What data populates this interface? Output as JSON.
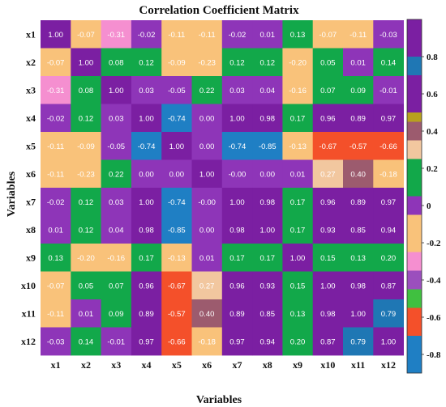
{
  "chart_data": {
    "type": "heatmap",
    "title": "Correlation Coefficient Matrix",
    "xlabel": "Variables",
    "ylabel": "Variables",
    "labels": [
      "x1",
      "x2",
      "x3",
      "x4",
      "x5",
      "x6",
      "x7",
      "x8",
      "x9",
      "x10",
      "x11",
      "x12"
    ],
    "values": [
      [
        1.0,
        -0.07,
        -0.31,
        -0.02,
        -0.11,
        -0.11,
        -0.02,
        0.01,
        0.13,
        -0.07,
        -0.11,
        -0.03
      ],
      [
        -0.07,
        1.0,
        0.08,
        0.12,
        -0.09,
        -0.23,
        0.12,
        0.12,
        -0.2,
        0.05,
        0.01,
        0.14
      ],
      [
        -0.31,
        0.08,
        1.0,
        0.03,
        -0.05,
        0.22,
        0.03,
        0.04,
        -0.16,
        0.07,
        0.09,
        -0.01
      ],
      [
        -0.02,
        0.12,
        0.03,
        1.0,
        -0.74,
        0.0,
        1.0,
        0.98,
        0.17,
        0.96,
        0.89,
        0.97
      ],
      [
        -0.11,
        -0.09,
        -0.05,
        -0.74,
        1.0,
        0.0,
        -0.74,
        -0.85,
        -0.13,
        -0.67,
        -0.57,
        -0.66
      ],
      [
        -0.11,
        -0.23,
        0.22,
        0.0,
        0.0,
        1.0,
        -0.0,
        0.0,
        0.01,
        0.27,
        0.4,
        -0.18
      ],
      [
        -0.02,
        0.12,
        0.03,
        1.0,
        -0.74,
        -0.0,
        1.0,
        0.98,
        0.17,
        0.96,
        0.89,
        0.97
      ],
      [
        0.01,
        0.12,
        0.04,
        0.98,
        -0.85,
        0.0,
        0.98,
        1.0,
        0.17,
        0.93,
        0.85,
        0.94
      ],
      [
        0.13,
        -0.2,
        -0.16,
        0.17,
        -0.13,
        0.01,
        0.17,
        0.17,
        1.0,
        0.15,
        0.13,
        0.2
      ],
      [
        -0.07,
        0.05,
        0.07,
        0.96,
        -0.67,
        0.27,
        0.96,
        0.93,
        0.15,
        1.0,
        0.98,
        0.87
      ],
      [
        -0.11,
        0.01,
        0.09,
        0.89,
        -0.57,
        0.4,
        0.89,
        0.85,
        0.13,
        0.98,
        1.0,
        0.79
      ],
      [
        -0.03,
        0.14,
        -0.01,
        0.97,
        -0.66,
        -0.18,
        0.97,
        0.94,
        0.2,
        0.87,
        0.79,
        1.0
      ]
    ],
    "colorbar": {
      "ticks": [
        "0.8",
        "0.6",
        "0.4",
        "0.2",
        "0",
        "-0.2",
        "-0.4",
        "-0.6",
        "-0.8"
      ],
      "range": [
        -0.9,
        1.0
      ],
      "bands": [
        {
          "min": 0.8,
          "max": 1.0,
          "color": "#7b1fa2"
        },
        {
          "min": 0.7,
          "max": 0.8,
          "color": "#1f77b4"
        },
        {
          "min": 0.5,
          "max": 0.7,
          "color": "#7b1fa2"
        },
        {
          "min": 0.45,
          "max": 0.5,
          "color": "#b8a01e"
        },
        {
          "min": 0.35,
          "max": 0.45,
          "color": "#9c5b6e"
        },
        {
          "min": 0.25,
          "max": 0.35,
          "color": "#f2c79f"
        },
        {
          "min": 0.05,
          "max": 0.25,
          "color": "#12a84a"
        },
        {
          "min": -0.05,
          "max": 0.05,
          "color": "#8e35b8"
        },
        {
          "min": -0.25,
          "max": -0.05,
          "color": "#f9c27a"
        },
        {
          "min": -0.35,
          "max": -0.25,
          "color": "#f58fd0"
        },
        {
          "min": -0.45,
          "max": -0.35,
          "color": "#9b4fbd"
        },
        {
          "min": -0.55,
          "max": -0.45,
          "color": "#40c040"
        },
        {
          "min": -0.7,
          "max": -0.55,
          "color": "#f4502a"
        },
        {
          "min": -0.8,
          "max": -0.7,
          "color": "#1f7fc4"
        },
        {
          "min": -0.9,
          "max": -0.8,
          "color": "#1f7fc4"
        }
      ]
    },
    "grid": false,
    "legend": "colorbar-right"
  }
}
